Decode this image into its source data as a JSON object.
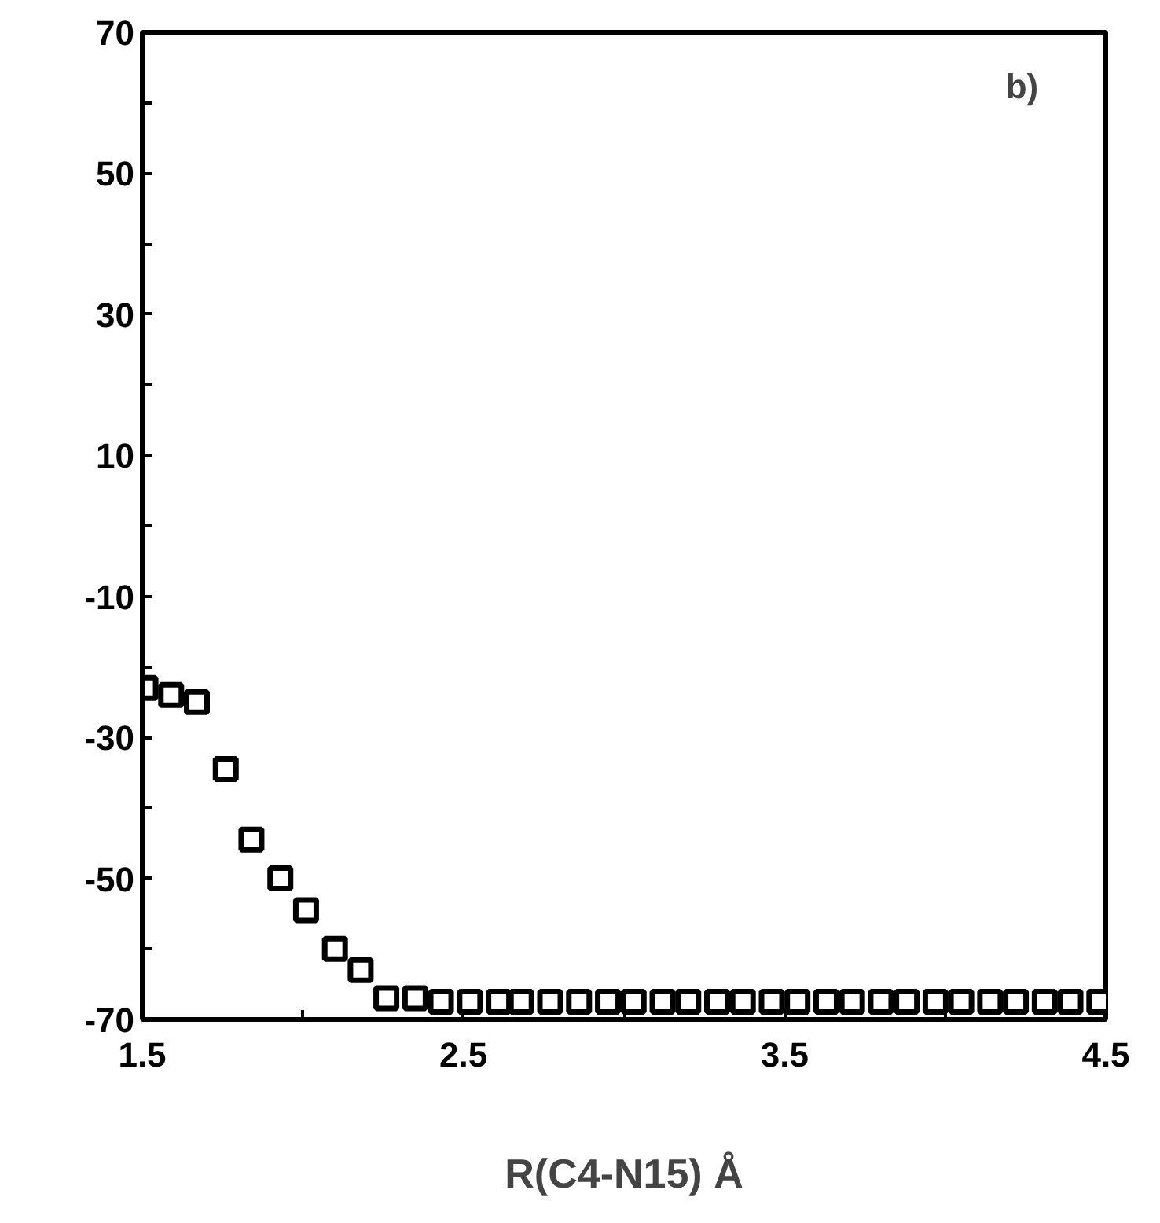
{
  "chart_data": {
    "type": "scatter",
    "xlabel": "R(C4-N15) Å",
    "annotations": [
      "b)"
    ],
    "x": [
      1.51,
      1.59,
      1.67,
      1.76,
      1.84,
      1.93,
      2.01,
      2.1,
      2.18,
      2.26,
      2.35,
      2.43,
      2.52,
      2.61,
      2.68,
      2.77,
      2.86,
      2.95,
      3.03,
      3.12,
      3.2,
      3.29,
      3.37,
      3.46,
      3.54,
      3.63,
      3.71,
      3.8,
      3.88,
      3.97,
      4.05,
      4.14,
      4.22,
      4.31,
      4.39,
      4.48
    ],
    "values": [
      -23,
      -24,
      -25,
      -34.5,
      -44.5,
      -50,
      -54.5,
      -60,
      -63,
      -67,
      -67,
      -67.5,
      -67.5,
      -67.5,
      -67.5,
      -67.5,
      -67.5,
      -67.5,
      -67.5,
      -67.5,
      -67.5,
      -67.5,
      -67.5,
      -67.5,
      -67.5,
      -67.5,
      -67.5,
      -67.5,
      -67.5,
      -67.5,
      -67.5,
      -67.5,
      -67.5,
      -67.5,
      -67.5,
      -67.5
    ],
    "color": "#000000",
    "marker": "square",
    "xlim": [
      1.5,
      4.5
    ],
    "xticks": [
      1.5,
      {
        "value": 2,
        "label": null
      },
      2.5,
      {
        "value": 3,
        "label": null
      },
      3.5,
      {
        "value": 4,
        "label": null
      },
      4.5
    ],
    "ylim": [
      -70,
      70
    ],
    "yticks": [
      -70,
      {
        "value": -60,
        "label": null
      },
      -50,
      {
        "value": -40,
        "label": null
      },
      -30,
      {
        "value": -20,
        "label": null
      },
      -10,
      {
        "value": 0,
        "label": null
      },
      10,
      {
        "value": 20,
        "label": null
      },
      30,
      {
        "value": 40,
        "label": null
      },
      50,
      {
        "value": 60,
        "label": null
      },
      70
    ],
    "grid": false
  }
}
